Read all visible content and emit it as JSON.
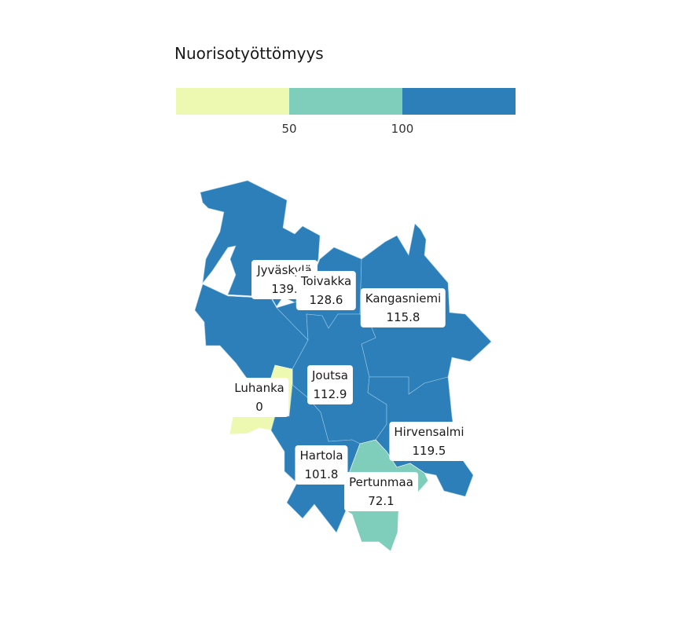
{
  "legend": {
    "title": "Nuorisotyöttömyys",
    "segments": [
      {
        "color": "#edf8b1"
      },
      {
        "color": "#7fcdbb"
      },
      {
        "color": "#2c7fb8"
      }
    ],
    "ticks": [
      "50",
      "100"
    ]
  },
  "regions": [
    {
      "name": "Jyväskylä",
      "value": "139.",
      "color": "#2c7fb8"
    },
    {
      "name": "Toivakka",
      "value": "128.6",
      "color": "#2c7fb8"
    },
    {
      "name": "Kangasniemi",
      "value": "115.8",
      "color": "#2c7fb8"
    },
    {
      "name": "Joutsa",
      "value": "112.9",
      "color": "#2c7fb8"
    },
    {
      "name": "Luhanka",
      "value": "0",
      "color": "#edf8b1"
    },
    {
      "name": "Hirvensalmi",
      "value": "119.5",
      "color": "#2c7fb8"
    },
    {
      "name": "Hartola",
      "value": "101.8",
      "color": "#2c7fb8"
    },
    {
      "name": "Pertunmaa",
      "value": "72.1",
      "color": "#7fcdbb"
    }
  ]
}
